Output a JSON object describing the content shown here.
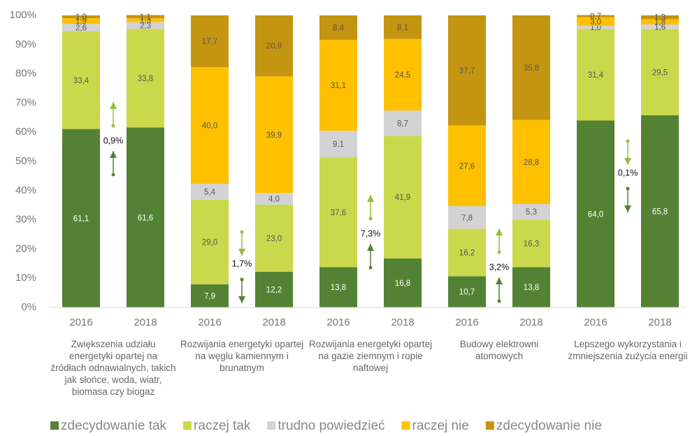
{
  "chart_data": {
    "type": "stacked_bar",
    "categories": [
      "2016",
      "2018",
      "2016",
      "2018",
      "2016",
      "2018",
      "2016",
      "2018",
      "2016",
      "2018"
    ],
    "groups": [
      "Zwiększenia udziału energetyki opartej na źródłach odnawialnych, takich jak słońce, woda, wiatr, biomasa czy biogaz",
      "Rozwijania energetyki opartej na węglu kamiennym i brunatnym",
      "Rozwijania energetyki opartej na gazie ziemnym i ropie naftowej",
      "Budowy elektrowni atomowych",
      "Lepszego wykorzystania i zmniejszenia zużycia energii"
    ],
    "series": [
      {
        "name": "zdecydowanie tak",
        "color": "#548235",
        "values": [
          61.1,
          61.6,
          7.9,
          12.2,
          13.8,
          16.8,
          10.7,
          13.8,
          64.0,
          65.8
        ],
        "value_labels": [
          "61,1",
          "61,6",
          "7,9",
          "12,2",
          "13,8",
          "16,8",
          "10,7",
          "13,8",
          "64,0",
          "65,8"
        ]
      },
      {
        "name": "raczej tak",
        "color": "#cad94b",
        "values": [
          33.4,
          33.8,
          29.0,
          23.0,
          37.6,
          41.9,
          16.2,
          16.3,
          31.4,
          29.5
        ],
        "value_labels": [
          "33,4",
          "33,8",
          "29,0",
          "23,0",
          "37,6",
          "41,9",
          "16,2",
          "16,3",
          "31,4",
          "29,5"
        ]
      },
      {
        "name": "trudno powiedzieć",
        "color": "#d3d3d3",
        "values": [
          2.6,
          2.3,
          5.4,
          4.0,
          9.1,
          8.7,
          7.8,
          5.3,
          1.0,
          1.6
        ],
        "value_labels": [
          "2,6",
          "2,3",
          "5,4",
          "4,0",
          "9,1",
          "8,7",
          "7,8",
          "5,3",
          "1,0",
          "1,6"
        ]
      },
      {
        "name": "raczej nie",
        "color": "#ffc000",
        "values": [
          1.9,
          1.3,
          40.0,
          39.9,
          31.1,
          24.5,
          27.6,
          28.8,
          3.0,
          1.8
        ],
        "value_labels": [
          "1,9",
          "1,3",
          "40,0",
          "39,9",
          "31,1",
          "24,5",
          "27,6",
          "28,8",
          "3,0",
          "1,8"
        ]
      },
      {
        "name": "zdecydowanie nie",
        "color": "#c49510",
        "values": [
          1.0,
          1.1,
          17.7,
          20.9,
          8.4,
          8.1,
          37.7,
          35.8,
          0.7,
          1.3
        ],
        "value_labels": [
          "1,0",
          "1,1",
          "17,7",
          "20,9",
          "8,4",
          "8,1",
          "37,7",
          "35,8",
          "0,7",
          "1,3"
        ]
      }
    ],
    "annotations": [
      "0,9%",
      "1,7%",
      "7,3%",
      "3,2%",
      "0,1%"
    ],
    "ylim": [
      0,
      100
    ],
    "yticks": [
      {
        "value": 0,
        "label": "0%"
      },
      {
        "value": 10,
        "label": "10%"
      },
      {
        "value": 20,
        "label": "20%"
      },
      {
        "value": 30,
        "label": "30%"
      },
      {
        "value": 40,
        "label": "40%"
      },
      {
        "value": 50,
        "label": "50%"
      },
      {
        "value": 60,
        "label": "60%"
      },
      {
        "value": 70,
        "label": "70%"
      },
      {
        "value": 80,
        "label": "80%"
      },
      {
        "value": 90,
        "label": "90%"
      },
      {
        "value": 100,
        "label": "100%"
      }
    ],
    "grid": false,
    "legend": "bottom"
  }
}
